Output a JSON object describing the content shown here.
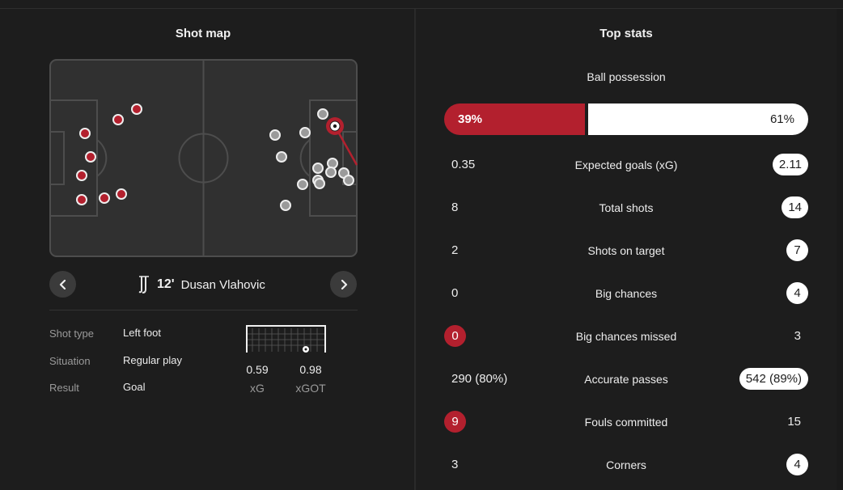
{
  "shot_map": {
    "title": "Shot map",
    "player": {
      "minute": "12'",
      "name": "Dusan Vlahovic"
    },
    "details": [
      {
        "label": "Shot type",
        "value": "Left foot"
      },
      {
        "label": "Situation",
        "value": "Regular play"
      },
      {
        "label": "Result",
        "value": "Goal"
      }
    ],
    "xg": {
      "value": "0.59",
      "label": "xG"
    },
    "xgot": {
      "value": "0.98",
      "label": "xGOT"
    }
  },
  "top_stats": {
    "title": "Top stats",
    "possession": {
      "label": "Ball possession",
      "home": "39%",
      "away": "61%",
      "home_pct": 39
    },
    "rows": [
      {
        "name": "Expected goals (xG)",
        "home": "0.35",
        "away": "2.11"
      },
      {
        "name": "Total shots",
        "home": "8",
        "away": "14"
      },
      {
        "name": "Shots on target",
        "home": "2",
        "away": "7"
      },
      {
        "name": "Big chances",
        "home": "0",
        "away": "4"
      },
      {
        "name": "Big chances missed",
        "home": "0",
        "away": "3"
      },
      {
        "name": "Accurate passes",
        "home": "290 (80%)",
        "away": "542 (89%)"
      },
      {
        "name": "Fouls committed",
        "home": "9",
        "away": "15"
      },
      {
        "name": "Corners",
        "home": "3",
        "away": "4"
      }
    ]
  },
  "colors": {
    "home": "#b3202e",
    "away": "#ffffff",
    "background": "#1d1d1d"
  }
}
